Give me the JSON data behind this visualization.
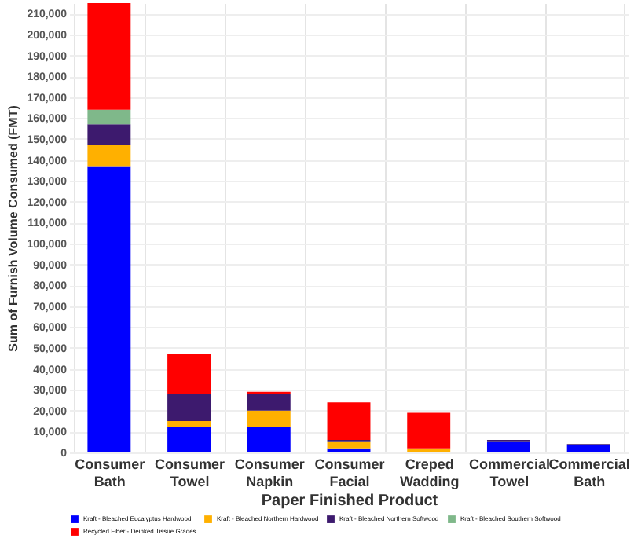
{
  "chart_data": {
    "type": "bar",
    "stacked": true,
    "xlabel": "Paper Finished Product",
    "ylabel": "Sum of Furnish Volume Consumed (FMT)",
    "categories": [
      "Consumer Bath",
      "Consumer Towel",
      "Consumer Napkin",
      "Consumer Facial",
      "Creped Wadding",
      "Commercial Towel",
      "Commercial Bath"
    ],
    "series": [
      {
        "name": "Kraft - Bleached Eucalyptus Hardwood",
        "color": "#0000ff",
        "values": [
          137000,
          12000,
          12000,
          2000,
          0,
          5000,
          3500
        ]
      },
      {
        "name": "Kraft - Bleached Northern Hardwood",
        "color": "#ffb000",
        "values": [
          10000,
          3000,
          8000,
          3000,
          2000,
          0,
          0
        ]
      },
      {
        "name": "Kraft - Bleached Northern Softwood",
        "color": "#3d1a6e",
        "values": [
          10000,
          13000,
          8000,
          1000,
          0,
          1000,
          500
        ]
      },
      {
        "name": "Kraft - Bleached Southern Softwood",
        "color": "#7fb88a",
        "values": [
          7000,
          0,
          0,
          0,
          0,
          0,
          0
        ]
      },
      {
        "name": "Recycled Fiber - Deinked Tissue Grades",
        "color": "#ff0000",
        "values": [
          51000,
          19000,
          1000,
          18000,
          17000,
          0,
          0
        ]
      }
    ],
    "ylim": [
      0,
      215000
    ],
    "yticks": [
      0,
      {
        "value": 10000,
        "label": "10,000"
      },
      {
        "value": 20000,
        "label": "20,000"
      },
      {
        "value": 30000,
        "label": "30,000"
      },
      {
        "value": 40000,
        "label": "40,000"
      },
      {
        "value": 50000,
        "label": "50,000"
      },
      {
        "value": 60000,
        "label": "60,000"
      },
      {
        "value": 70000,
        "label": "70,000"
      },
      {
        "value": 80000,
        "label": "80,000"
      },
      {
        "value": 90000,
        "label": "90,000"
      },
      {
        "value": 100000,
        "label": "100,000"
      },
      {
        "value": 110000,
        "label": "110,000"
      },
      {
        "value": 120000,
        "label": "120,000"
      },
      {
        "value": 130000,
        "label": "130,000"
      },
      {
        "value": 140000,
        "label": "140,000"
      },
      {
        "value": 150000,
        "label": "150,000"
      },
      {
        "value": 160000,
        "label": "160,000"
      },
      {
        "value": 170000,
        "label": "170,000"
      },
      {
        "value": 180000,
        "label": "180,000"
      },
      {
        "value": 190000,
        "label": "190,000"
      },
      {
        "value": 200000,
        "label": "200,000"
      },
      {
        "value": 210000,
        "label": "210,000"
      }
    ],
    "grid": true,
    "legend": "bottom"
  }
}
